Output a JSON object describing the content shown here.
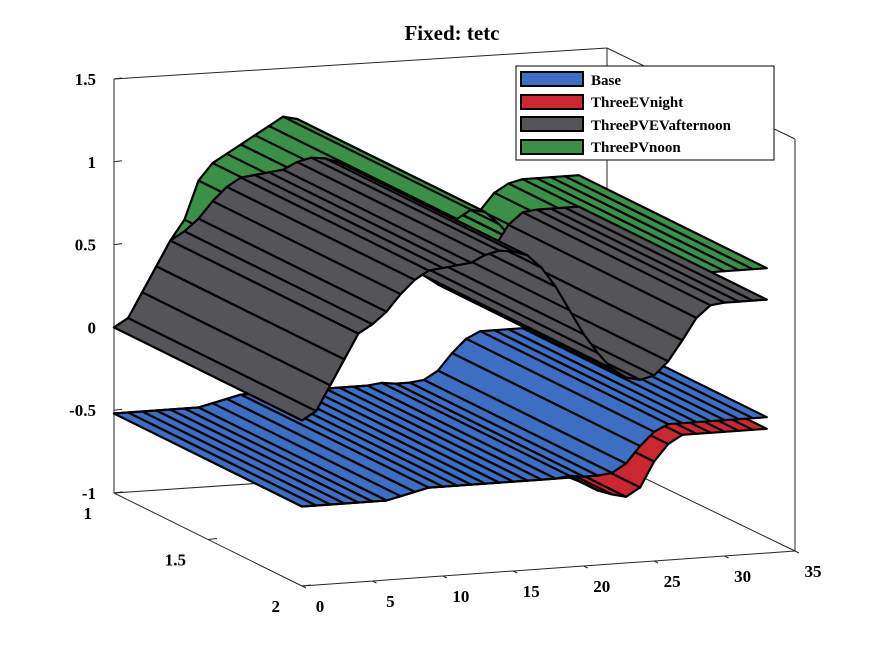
{
  "chart_data": {
    "type": "surface3d",
    "title": "Fixed: tetc",
    "xlabel": "",
    "ylabel": "",
    "zlabel": "",
    "xlim": [
      0,
      35
    ],
    "ylim": [
      1,
      2
    ],
    "zlim": [
      -1,
      1.5
    ],
    "x_ticks": [
      "0",
      "5",
      "10",
      "15",
      "20",
      "25",
      "30",
      "35"
    ],
    "y_ticks": [
      "1",
      "1.5",
      "2"
    ],
    "z_ticks": [
      "-1",
      "-0.5",
      "0",
      "0.5",
      "1",
      "1.5"
    ],
    "legend_position": "top-right",
    "x": [
      0,
      1,
      2,
      3,
      4,
      5,
      6,
      7,
      8,
      9,
      10,
      11,
      12,
      13,
      14,
      15,
      16,
      17,
      18,
      19,
      20,
      21,
      22,
      23,
      24,
      25,
      26,
      27,
      28,
      29,
      30,
      31,
      32,
      33
    ],
    "series": [
      {
        "name": "Base",
        "color": "#3c6ec2",
        "values": [
          -0.52,
          -0.52,
          -0.52,
          -0.52,
          -0.52,
          -0.52,
          -0.52,
          -0.5,
          -0.48,
          -0.46,
          -0.46,
          -0.46,
          -0.46,
          -0.46,
          -0.46,
          -0.46,
          -0.46,
          -0.46,
          -0.46,
          -0.45,
          -0.46,
          -0.46,
          -0.45,
          -0.4,
          -0.3,
          -0.22,
          -0.18,
          -0.18,
          -0.18,
          -0.18,
          -0.18,
          -0.18,
          -0.18,
          -0.18
        ]
      },
      {
        "name": "ThreeEVnight",
        "color": "#cc2730",
        "values": [
          -0.52,
          -0.52,
          -0.52,
          -0.52,
          -0.52,
          -0.52,
          -0.52,
          -0.5,
          -0.48,
          -0.46,
          -0.46,
          -0.46,
          -0.46,
          -0.46,
          -0.46,
          -0.46,
          -0.46,
          -0.46,
          -0.46,
          -0.46,
          -0.5,
          -0.55,
          -0.58,
          -0.6,
          -0.55,
          -0.4,
          -0.3,
          -0.25,
          -0.25,
          -0.25,
          -0.25,
          -0.25,
          -0.25,
          -0.25
        ]
      },
      {
        "name": "ThreePVEVafternoon",
        "color": "#555458",
        "values": [
          0,
          0.05,
          0.2,
          0.35,
          0.5,
          0.55,
          0.62,
          0.72,
          0.8,
          0.85,
          0.86,
          0.87,
          0.88,
          0.92,
          0.94,
          0.93,
          0.9,
          0.82,
          0.7,
          0.55,
          0.4,
          0.28,
          0.18,
          0.12,
          0.1,
          0.12,
          0.2,
          0.32,
          0.45,
          0.52,
          0.53,
          0.53,
          0.53,
          0.53
        ]
      },
      {
        "name": "ThreePVnoon",
        "color": "#3b9048",
        "values": [
          0,
          0.05,
          0.2,
          0.35,
          0.5,
          0.62,
          0.85,
          0.95,
          1.0,
          1.05,
          1.1,
          1.15,
          1.2,
          1.18,
          1.1,
          1.0,
          0.95,
          0.85,
          0.75,
          0.62,
          0.5,
          0.4,
          0.35,
          0.32,
          0.33,
          0.4,
          0.55,
          0.65,
          0.7,
          0.72,
          0.72,
          0.72,
          0.72,
          0.72
        ]
      }
    ]
  }
}
